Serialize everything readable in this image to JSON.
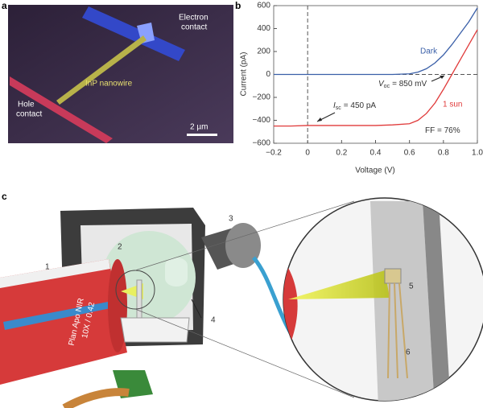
{
  "panel_a": {
    "label": "a",
    "electron_contact": [
      "Electron",
      "contact"
    ],
    "nanowire": "InP nanowire",
    "hole_contact": [
      "Hole",
      "contact"
    ],
    "scale_bar": "2 µm"
  },
  "chart_data": {
    "type": "line",
    "panel_label": "b",
    "xlabel": "Voltage (V)",
    "ylabel": "Current (pA)",
    "x": [
      -0.2,
      -0.1,
      0,
      0.1,
      0.2,
      0.3,
      0.4,
      0.5,
      0.6,
      0.65,
      0.7,
      0.75,
      0.8,
      0.85,
      0.9,
      0.95,
      1.0
    ],
    "series": [
      {
        "name": "Dark",
        "color": "#3a5fa8",
        "values": [
          0,
          0,
          0,
          0,
          0,
          0,
          0,
          0,
          5,
          20,
          50,
          100,
          170,
          260,
          360,
          460,
          580
        ]
      },
      {
        "name": "1 sun",
        "color": "#e03a3a",
        "values": [
          -450,
          -450,
          -445,
          -445,
          -445,
          -445,
          -445,
          -440,
          -430,
          -400,
          -340,
          -250,
          -130,
          0,
          130,
          260,
          390
        ]
      }
    ],
    "xlim": [
      -0.2,
      1.0
    ],
    "xticks": [
      {
        "value": -0.2,
        "label": "−0.2"
      },
      0,
      0.2,
      0.4,
      0.6,
      0.8,
      {
        "value": 1.0,
        "label": "1.0"
      }
    ],
    "ylim": [
      -600,
      600
    ],
    "yticks": [
      {
        "value": -600,
        "label": "−600"
      },
      {
        "value": -400,
        "label": "−400"
      },
      {
        "value": -200,
        "label": "−200"
      },
      0,
      200,
      400,
      600
    ],
    "annotations": [
      {
        "symbol": "V",
        "subscript": "oc",
        "text": "= 850 mV"
      },
      {
        "symbol": "I",
        "subscript": "sc",
        "text": "= 450 pA"
      },
      {
        "text": "FF = 76%"
      }
    ]
  },
  "panel_c": {
    "label": "c",
    "callouts": [
      "1",
      "2",
      "3",
      "4",
      "5",
      "6"
    ],
    "objective_text": [
      "Plan Apo NIR",
      "10X / 0.42"
    ]
  }
}
